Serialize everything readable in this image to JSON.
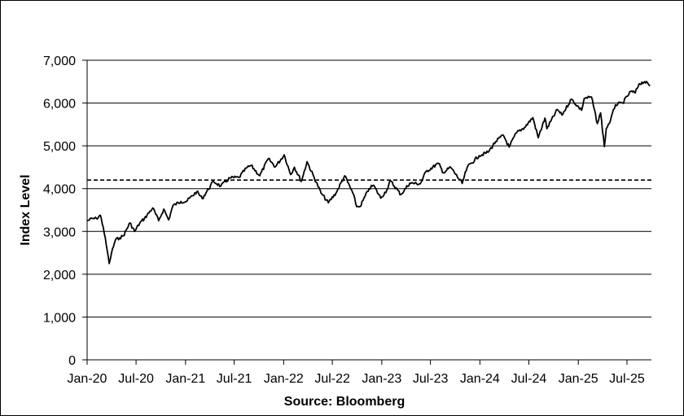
{
  "chart_data": {
    "type": "line",
    "ylabel": "Index Level",
    "xlabel": "Source: Bloomberg",
    "ylim": [
      0,
      7000
    ],
    "y_ticks": [
      0,
      1000,
      2000,
      3000,
      4000,
      5000,
      6000,
      7000
    ],
    "y_tick_labels": [
      "0",
      "1,000",
      "2,000",
      "3,000",
      "4,000",
      "5,000",
      "6,000",
      "7,000"
    ],
    "x_range": [
      "2020-01-01",
      "2025-09-30"
    ],
    "x_ticks": [
      "2020-01-01",
      "2020-07-01",
      "2021-01-01",
      "2021-07-01",
      "2022-01-01",
      "2022-07-01",
      "2023-01-01",
      "2023-07-01",
      "2024-01-01",
      "2024-07-01",
      "2025-01-01",
      "2025-07-01"
    ],
    "x_tick_labels": [
      "Jan-20",
      "Jul-20",
      "Jan-21",
      "Jul-21",
      "Jan-22",
      "Jul-22",
      "Jan-23",
      "Jul-23",
      "Jan-24",
      "Jul-24",
      "Jan-25",
      "Jul-25"
    ],
    "grid": "horizontal",
    "reference_line": {
      "y": 4200,
      "style": "dashed"
    },
    "series": [
      {
        "color": "#000000",
        "points": [
          [
            "2020-01-02",
            3250
          ],
          [
            "2020-01-20",
            3300
          ],
          [
            "2020-02-05",
            3300
          ],
          [
            "2020-02-19",
            3380
          ],
          [
            "2020-03-01",
            3100
          ],
          [
            "2020-03-12",
            2700
          ],
          [
            "2020-03-23",
            2250
          ],
          [
            "2020-04-01",
            2500
          ],
          [
            "2020-04-15",
            2800
          ],
          [
            "2020-05-01",
            2850
          ],
          [
            "2020-05-15",
            2900
          ],
          [
            "2020-06-08",
            3200
          ],
          [
            "2020-06-26",
            3000
          ],
          [
            "2020-07-15",
            3200
          ],
          [
            "2020-08-01",
            3300
          ],
          [
            "2020-09-01",
            3550
          ],
          [
            "2020-09-23",
            3250
          ],
          [
            "2020-10-12",
            3520
          ],
          [
            "2020-10-30",
            3270
          ],
          [
            "2020-11-15",
            3600
          ],
          [
            "2020-12-15",
            3700
          ],
          [
            "2021-01-04",
            3700
          ],
          [
            "2021-02-12",
            3930
          ],
          [
            "2021-03-04",
            3770
          ],
          [
            "2021-04-15",
            4170
          ],
          [
            "2021-05-12",
            4060
          ],
          [
            "2021-06-15",
            4250
          ],
          [
            "2021-07-19",
            4260
          ],
          [
            "2021-08-15",
            4480
          ],
          [
            "2021-09-02",
            4540
          ],
          [
            "2021-10-04",
            4300
          ],
          [
            "2021-11-05",
            4700
          ],
          [
            "2021-12-01",
            4510
          ],
          [
            "2022-01-03",
            4790
          ],
          [
            "2022-01-27",
            4330
          ],
          [
            "2022-02-10",
            4500
          ],
          [
            "2022-03-08",
            4170
          ],
          [
            "2022-03-29",
            4630
          ],
          [
            "2022-05-20",
            3900
          ],
          [
            "2022-06-16",
            3670
          ],
          [
            "2022-07-15",
            3900
          ],
          [
            "2022-08-16",
            4300
          ],
          [
            "2022-09-15",
            3900
          ],
          [
            "2022-09-30",
            3580
          ],
          [
            "2022-10-12",
            3580
          ],
          [
            "2022-11-15",
            4000
          ],
          [
            "2022-12-01",
            4080
          ],
          [
            "2022-12-28",
            3780
          ],
          [
            "2023-01-20",
            3970
          ],
          [
            "2023-02-02",
            4180
          ],
          [
            "2023-03-13",
            3860
          ],
          [
            "2023-04-15",
            4130
          ],
          [
            "2023-05-24",
            4110
          ],
          [
            "2023-06-15",
            4400
          ],
          [
            "2023-07-31",
            4590
          ],
          [
            "2023-08-18",
            4370
          ],
          [
            "2023-09-14",
            4500
          ],
          [
            "2023-10-27",
            4120
          ],
          [
            "2023-11-15",
            4500
          ],
          [
            "2023-12-29",
            4770
          ],
          [
            "2024-01-31",
            4850
          ],
          [
            "2024-02-29",
            5100
          ],
          [
            "2024-03-28",
            5250
          ],
          [
            "2024-04-19",
            4970
          ],
          [
            "2024-05-15",
            5300
          ],
          [
            "2024-06-15",
            5430
          ],
          [
            "2024-07-16",
            5660
          ],
          [
            "2024-08-05",
            5190
          ],
          [
            "2024-08-30",
            5650
          ],
          [
            "2024-09-06",
            5400
          ],
          [
            "2024-10-15",
            5850
          ],
          [
            "2024-11-01",
            5720
          ],
          [
            "2024-12-06",
            6090
          ],
          [
            "2025-01-13",
            5830
          ],
          [
            "2025-01-23",
            6110
          ],
          [
            "2025-02-19",
            6140
          ],
          [
            "2025-03-13",
            5520
          ],
          [
            "2025-03-25",
            5770
          ],
          [
            "2025-04-08",
            4980
          ],
          [
            "2025-04-15",
            5400
          ],
          [
            "2025-05-01",
            5600
          ],
          [
            "2025-05-19",
            5960
          ],
          [
            "2025-06-15",
            6000
          ],
          [
            "2025-07-15",
            6270
          ],
          [
            "2025-08-01",
            6240
          ],
          [
            "2025-08-15",
            6450
          ],
          [
            "2025-09-05",
            6500
          ],
          [
            "2025-09-25",
            6400
          ]
        ]
      }
    ]
  }
}
